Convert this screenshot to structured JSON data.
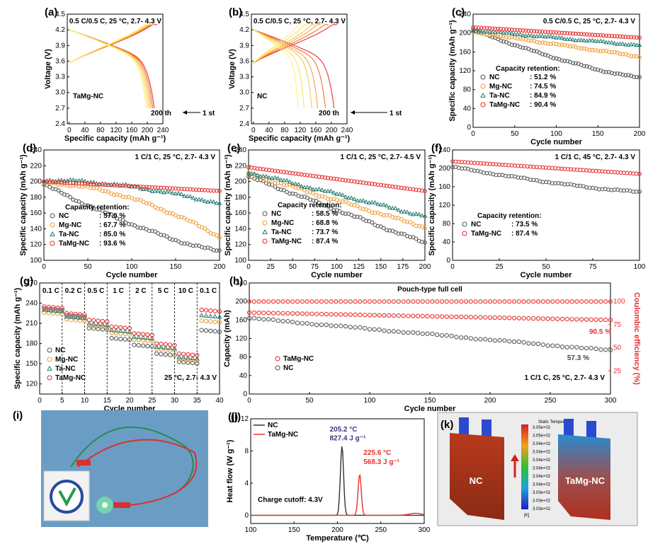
{
  "colors": {
    "NC": "#5a5a5a",
    "Mg-NC": "#f0a040",
    "Ta-NC": "#1f7a6e",
    "TaMg-NC": "#e83030",
    "red": "#e83030",
    "blue_red": "#d62020"
  },
  "chart_data": [
    {
      "id": "a",
      "type": "line",
      "panel_label": "(a)",
      "condition": "0.5 C/0.5 C, 25 °C,  2.7- 4.3 V",
      "xlabel": "Specific capacity (mAh g⁻¹)",
      "ylabel": "Voltage (V)",
      "xlim": [
        -5,
        240
      ],
      "ylim": [
        2.4,
        4.5
      ],
      "xticks": [
        0,
        40,
        80,
        120,
        160,
        200,
        240
      ],
      "yticks": [
        2.4,
        2.7,
        3.0,
        3.3,
        3.6,
        3.9,
        4.2,
        4.5
      ],
      "sample": "TaMg-NC",
      "start_label": "200 th",
      "end_label": "1 st",
      "discharge_capacities": [
        218,
        214,
        210,
        206,
        202,
        198
      ],
      "colors_range": [
        "#fff176",
        "#e83030"
      ]
    },
    {
      "id": "b",
      "type": "line",
      "panel_label": "(b)",
      "condition": "0.5 C/0.5 C, 25 °C,    2.7- 4.3 V",
      "xlabel": "Specific capacity (mAh g⁻¹)",
      "ylabel": "Voltage (V)",
      "xlim": [
        -5,
        240
      ],
      "ylim": [
        2.4,
        4.5
      ],
      "xticks": [
        0,
        40,
        80,
        120,
        160,
        200,
        240
      ],
      "yticks": [
        2.4,
        2.7,
        3.0,
        3.3,
        3.6,
        3.9,
        4.2,
        4.5
      ],
      "sample": "NC",
      "start_label": "200 th",
      "end_label": "1 st",
      "discharge_capacities": [
        207,
        185,
        165,
        150,
        130,
        115
      ],
      "colors_range": [
        "#fff176",
        "#e83030"
      ]
    },
    {
      "id": "c",
      "type": "scatter",
      "panel_label": "(c)",
      "condition": "0.5 C/0.5 C, 25 °C, 2.7- 4.3 V",
      "xlabel": "Cycle number",
      "ylabel": "Specific capacity (mAh g⁻¹)",
      "xlim": [
        0,
        200
      ],
      "ylim": [
        0,
        240
      ],
      "xticks": [
        0,
        50,
        100,
        150,
        200
      ],
      "yticks": [
        0,
        40,
        80,
        120,
        160,
        200,
        240
      ],
      "retention_title": "Capacity retention:",
      "series": [
        {
          "name": "NC",
          "retention": ": 51.2 %",
          "start": 206,
          "end": 106,
          "shape": "fast"
        },
        {
          "name": "Mg-NC",
          "retention": ": 74.5 %",
          "start": 202,
          "end": 150,
          "shape": "linear"
        },
        {
          "name": "Ta-NC",
          "retention": ": 84.9 %",
          "start": 206,
          "end": 174,
          "shape": "linear"
        },
        {
          "name": "TaMg-NC",
          "retention": ": 90.4 %",
          "start": 212,
          "end": 190,
          "shape": "linear"
        }
      ]
    },
    {
      "id": "d",
      "type": "scatter",
      "panel_label": "(d)",
      "condition": "1 C/1 C, 25 °C, 2.7- 4.3 V",
      "xlabel": "Cycle number",
      "ylabel": "Specific capacity (mAh g⁻¹)",
      "xlim": [
        0,
        200
      ],
      "ylim": [
        100,
        240
      ],
      "xticks": [
        0,
        50,
        100,
        150,
        200
      ],
      "yticks": [
        100,
        120,
        140,
        160,
        180,
        200,
        220,
        240
      ],
      "retention_title": "Capacity retention:",
      "series": [
        {
          "name": "NC",
          "retention": ": 57.0 %",
          "start": 196,
          "end": 112,
          "shape": "fast"
        },
        {
          "name": "Mg-NC",
          "retention": ": 67.7 %",
          "start": 198,
          "end": 130,
          "shape": "accel"
        },
        {
          "name": "Ta-NC",
          "retention": ": 85.0 %",
          "start": 202,
          "end": 172,
          "shape": "accel"
        },
        {
          "name": "TaMg-NC",
          "retention": ": 93.6 %",
          "start": 200,
          "end": 188,
          "shape": "linear"
        }
      ]
    },
    {
      "id": "e",
      "type": "scatter",
      "panel_label": "(e)",
      "condition": "1 C/1 C, 25 °C, 2.7- 4.5 V",
      "xlabel": "Cycle number",
      "ylabel": "Specific capacity (mAh g⁻¹)",
      "xlim": [
        0,
        200
      ],
      "ylim": [
        100,
        240
      ],
      "xticks": [
        0,
        25,
        50,
        75,
        100,
        125,
        150,
        175,
        200
      ],
      "yticks": [
        100,
        120,
        140,
        160,
        180,
        200,
        220,
        240
      ],
      "retention_title": "Capacity retention:",
      "series": [
        {
          "name": "NC",
          "retention": ": 58.5 %",
          "start": 206,
          "end": 122,
          "shape": "linear"
        },
        {
          "name": "Mg-NC",
          "retention": ": 68.8 %",
          "start": 210,
          "end": 142,
          "shape": "linear"
        },
        {
          "name": "Ta-NC",
          "retention": ": 73.7 %",
          "start": 212,
          "end": 156,
          "shape": "linear"
        },
        {
          "name": "TaMg-NC",
          "retention": ": 87.4 %",
          "start": 218,
          "end": 188,
          "shape": "linear"
        }
      ]
    },
    {
      "id": "f",
      "type": "scatter",
      "panel_label": "(f)",
      "condition": "1 C/1 C, 45 °C, 2.7- 4.3 V",
      "xlabel": "Cycle number",
      "ylabel": "Specific capacity (mAh g⁻¹)",
      "xlim": [
        0,
        100
      ],
      "ylim": [
        0,
        240
      ],
      "xticks": [
        0,
        25,
        50,
        75,
        100
      ],
      "yticks": [
        0,
        40,
        80,
        120,
        160,
        200,
        240
      ],
      "retention_title": "Capacity retention:",
      "series": [
        {
          "name": "NC",
          "retention": ": 73.5 %",
          "start": 203,
          "end": 149,
          "shape": "fast"
        },
        {
          "name": "TaMg-NC",
          "retention": ": 87.4 %",
          "start": 215,
          "end": 188,
          "shape": "linear"
        }
      ]
    },
    {
      "id": "g",
      "type": "scatter",
      "panel_label": "(g)",
      "condition": "25 °C, 2.7- 4.3 V",
      "xlabel": "Cycle number",
      "ylabel": "Specific capacity (mAh g⁻¹)",
      "xlim": [
        0,
        40
      ],
      "ylim": [
        105,
        270
      ],
      "xticks": [
        0,
        5,
        10,
        15,
        20,
        25,
        30,
        35,
        40
      ],
      "yticks": [
        120,
        150,
        180,
        210,
        240,
        270
      ],
      "rates": [
        "0.1 C",
        "0.2 C",
        "0.5 C",
        "1 C",
        "2 C",
        "5 C",
        "10 C",
        "0.1 C"
      ],
      "series": [
        {
          "name": "NC",
          "levels": [
            232,
            222,
            203,
            188,
            178,
            165,
            153,
            200
          ]
        },
        {
          "name": "Mg-NC",
          "levels": [
            226,
            216,
            207,
            196,
            186,
            172,
            157,
            214
          ]
        },
        {
          "name": "Ta-NC",
          "levels": [
            230,
            220,
            210,
            200,
            190,
            175,
            160,
            222
          ]
        },
        {
          "name": "TaMg-NC",
          "levels": [
            235,
            225,
            215,
            205,
            195,
            180,
            165,
            230
          ]
        }
      ]
    },
    {
      "id": "h",
      "type": "scatter",
      "panel_label": "(h)",
      "title": "Pouch-type full cell",
      "condition": "1 C/1 C, 25 °C, 2.7- 4.3 V",
      "xlabel": "Cycle number",
      "ylabel": "Capacity (mAh)",
      "y2label": "Coulombic efficiency (%)",
      "xlim": [
        0,
        300
      ],
      "ylim": [
        0,
        240
      ],
      "y2lim": [
        0,
        120
      ],
      "xticks": [
        0,
        50,
        100,
        150,
        200,
        250,
        300
      ],
      "yticks": [
        0,
        40,
        80,
        120,
        160,
        200,
        240
      ],
      "y2ticks": [
        25,
        50,
        75,
        100
      ],
      "series": [
        {
          "name": "TaMg-NC",
          "start": 176,
          "end": 160,
          "retention_label": "90.5 %"
        },
        {
          "name": "NC",
          "start": 164,
          "end": 94,
          "retention_label": "57.3 %"
        }
      ],
      "efficiency": 100
    },
    {
      "id": "j",
      "type": "line",
      "panel_label": "(j)",
      "xlabel": "Temperature (℃)",
      "ylabel": "Heat flow (W g⁻¹)",
      "xlim": [
        100,
        300
      ],
      "ylim": [
        -1,
        12
      ],
      "xticks": [
        100,
        150,
        200,
        250,
        300
      ],
      "yticks": [
        0,
        4,
        8,
        12
      ],
      "note": "Charge cutoff: 4.3V",
      "series": [
        {
          "name": "NC",
          "peak_temp": 205.2,
          "peak_height": 8.6,
          "label1": "205.2 °C",
          "label2": "827.4 J g⁻¹"
        },
        {
          "name": "TaMg-NC",
          "peak_temp": 225.6,
          "peak_height": 5.1,
          "label1": "225.6 °C",
          "label2": "568.3 J g⁻¹"
        }
      ]
    }
  ],
  "panel_i": {
    "panel_label": "(i)",
    "logo_text": "Photo of pouch cell lighting LED"
  },
  "panel_k": {
    "panel_label": "(k)",
    "left_label": "NC",
    "right_label": "TaMg-NC",
    "colorbar_title": "Static Temperature",
    "colorbar_unit": "[K]",
    "colorbar_ticks": [
      "3.05e+02",
      "3.05e+02",
      "3.04e+02",
      "3.04e+02",
      "3.04e+02",
      "3.04e+02",
      "3.04e+02",
      "3.04e+02",
      "3.03e+02",
      "3.03e+02",
      "3.03e+02"
    ]
  }
}
